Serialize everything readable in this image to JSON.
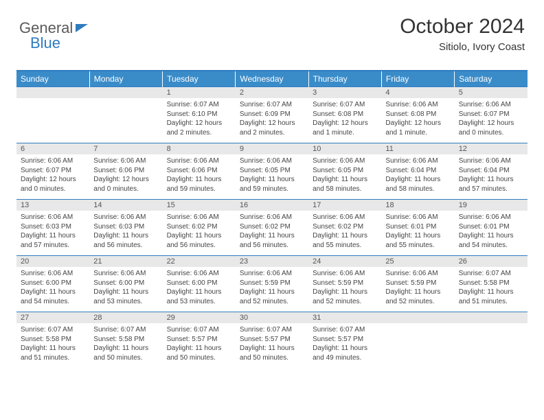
{
  "brand": {
    "part1": "General",
    "part2": "Blue"
  },
  "header": {
    "title": "October 2024",
    "location": "Sitiolo, Ivory Coast"
  },
  "colors": {
    "header_blue": "#3a8cc9",
    "rule_blue": "#2f7bbf",
    "daynum_bg": "#e8e8e8",
    "text": "#333333",
    "muted": "#555555"
  },
  "weekdays": [
    "Sunday",
    "Monday",
    "Tuesday",
    "Wednesday",
    "Thursday",
    "Friday",
    "Saturday"
  ],
  "layout": {
    "first_weekday_index": 2,
    "days_in_month": 31
  },
  "days": [
    {
      "n": 1,
      "sr": "6:07 AM",
      "ss": "6:10 PM",
      "dl": "12 hours and 2 minutes."
    },
    {
      "n": 2,
      "sr": "6:07 AM",
      "ss": "6:09 PM",
      "dl": "12 hours and 2 minutes."
    },
    {
      "n": 3,
      "sr": "6:07 AM",
      "ss": "6:08 PM",
      "dl": "12 hours and 1 minute."
    },
    {
      "n": 4,
      "sr": "6:06 AM",
      "ss": "6:08 PM",
      "dl": "12 hours and 1 minute."
    },
    {
      "n": 5,
      "sr": "6:06 AM",
      "ss": "6:07 PM",
      "dl": "12 hours and 0 minutes."
    },
    {
      "n": 6,
      "sr": "6:06 AM",
      "ss": "6:07 PM",
      "dl": "12 hours and 0 minutes."
    },
    {
      "n": 7,
      "sr": "6:06 AM",
      "ss": "6:06 PM",
      "dl": "12 hours and 0 minutes."
    },
    {
      "n": 8,
      "sr": "6:06 AM",
      "ss": "6:06 PM",
      "dl": "11 hours and 59 minutes."
    },
    {
      "n": 9,
      "sr": "6:06 AM",
      "ss": "6:05 PM",
      "dl": "11 hours and 59 minutes."
    },
    {
      "n": 10,
      "sr": "6:06 AM",
      "ss": "6:05 PM",
      "dl": "11 hours and 58 minutes."
    },
    {
      "n": 11,
      "sr": "6:06 AM",
      "ss": "6:04 PM",
      "dl": "11 hours and 58 minutes."
    },
    {
      "n": 12,
      "sr": "6:06 AM",
      "ss": "6:04 PM",
      "dl": "11 hours and 57 minutes."
    },
    {
      "n": 13,
      "sr": "6:06 AM",
      "ss": "6:03 PM",
      "dl": "11 hours and 57 minutes."
    },
    {
      "n": 14,
      "sr": "6:06 AM",
      "ss": "6:03 PM",
      "dl": "11 hours and 56 minutes."
    },
    {
      "n": 15,
      "sr": "6:06 AM",
      "ss": "6:02 PM",
      "dl": "11 hours and 56 minutes."
    },
    {
      "n": 16,
      "sr": "6:06 AM",
      "ss": "6:02 PM",
      "dl": "11 hours and 56 minutes."
    },
    {
      "n": 17,
      "sr": "6:06 AM",
      "ss": "6:02 PM",
      "dl": "11 hours and 55 minutes."
    },
    {
      "n": 18,
      "sr": "6:06 AM",
      "ss": "6:01 PM",
      "dl": "11 hours and 55 minutes."
    },
    {
      "n": 19,
      "sr": "6:06 AM",
      "ss": "6:01 PM",
      "dl": "11 hours and 54 minutes."
    },
    {
      "n": 20,
      "sr": "6:06 AM",
      "ss": "6:00 PM",
      "dl": "11 hours and 54 minutes."
    },
    {
      "n": 21,
      "sr": "6:06 AM",
      "ss": "6:00 PM",
      "dl": "11 hours and 53 minutes."
    },
    {
      "n": 22,
      "sr": "6:06 AM",
      "ss": "6:00 PM",
      "dl": "11 hours and 53 minutes."
    },
    {
      "n": 23,
      "sr": "6:06 AM",
      "ss": "5:59 PM",
      "dl": "11 hours and 52 minutes."
    },
    {
      "n": 24,
      "sr": "6:06 AM",
      "ss": "5:59 PM",
      "dl": "11 hours and 52 minutes."
    },
    {
      "n": 25,
      "sr": "6:06 AM",
      "ss": "5:59 PM",
      "dl": "11 hours and 52 minutes."
    },
    {
      "n": 26,
      "sr": "6:07 AM",
      "ss": "5:58 PM",
      "dl": "11 hours and 51 minutes."
    },
    {
      "n": 27,
      "sr": "6:07 AM",
      "ss": "5:58 PM",
      "dl": "11 hours and 51 minutes."
    },
    {
      "n": 28,
      "sr": "6:07 AM",
      "ss": "5:58 PM",
      "dl": "11 hours and 50 minutes."
    },
    {
      "n": 29,
      "sr": "6:07 AM",
      "ss": "5:57 PM",
      "dl": "11 hours and 50 minutes."
    },
    {
      "n": 30,
      "sr": "6:07 AM",
      "ss": "5:57 PM",
      "dl": "11 hours and 50 minutes."
    },
    {
      "n": 31,
      "sr": "6:07 AM",
      "ss": "5:57 PM",
      "dl": "11 hours and 49 minutes."
    }
  ],
  "labels": {
    "sunrise": "Sunrise:",
    "sunset": "Sunset:",
    "daylight": "Daylight:"
  }
}
